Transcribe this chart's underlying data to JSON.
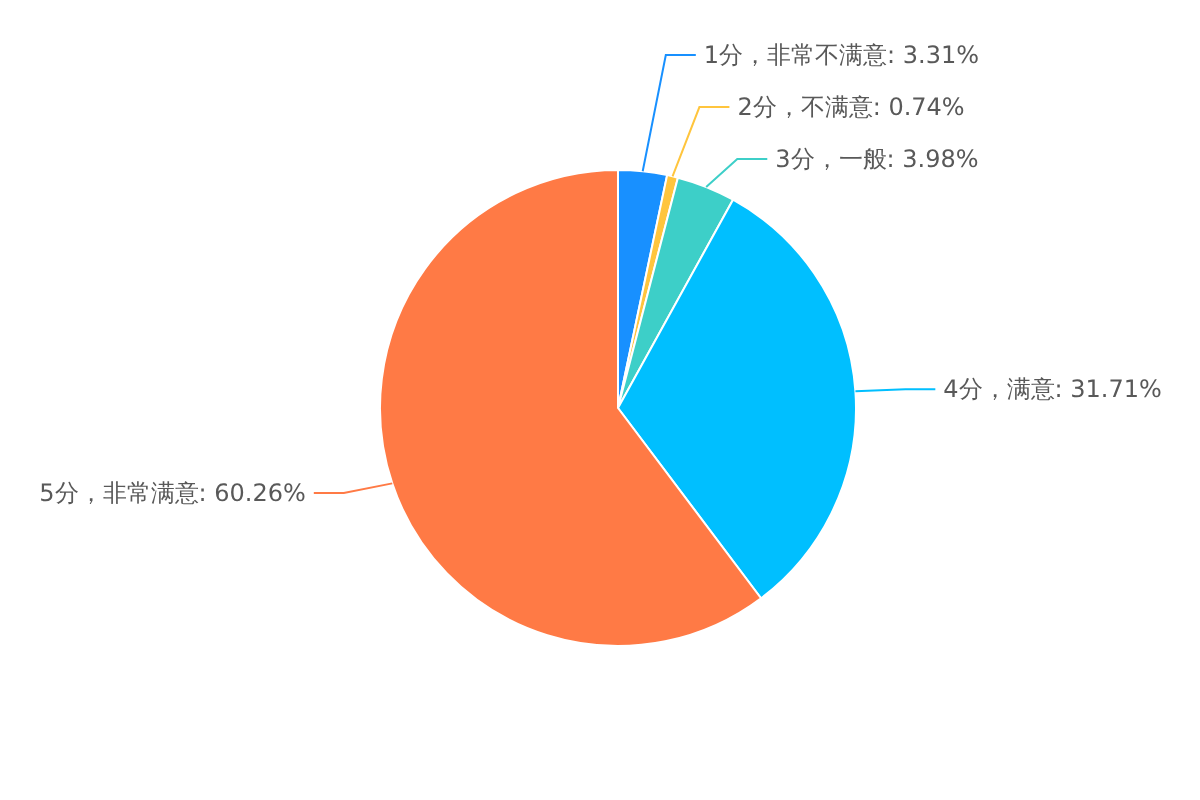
{
  "chart_data": {
    "type": "pie",
    "categories": [
      "1分，非常不满意",
      "2分，不满意",
      "3分，一般",
      "4分，满意",
      "5分，非常满意"
    ],
    "values": [
      3.31,
      0.74,
      3.98,
      31.71,
      60.26
    ],
    "value_labels": [
      "3.31%",
      "0.74%",
      "3.98%",
      "31.71%",
      "60.26%"
    ],
    "colors": [
      "#1890ff",
      "#ffc53d",
      "#3dcfc8",
      "#00bfff",
      "#ff7a45"
    ]
  }
}
